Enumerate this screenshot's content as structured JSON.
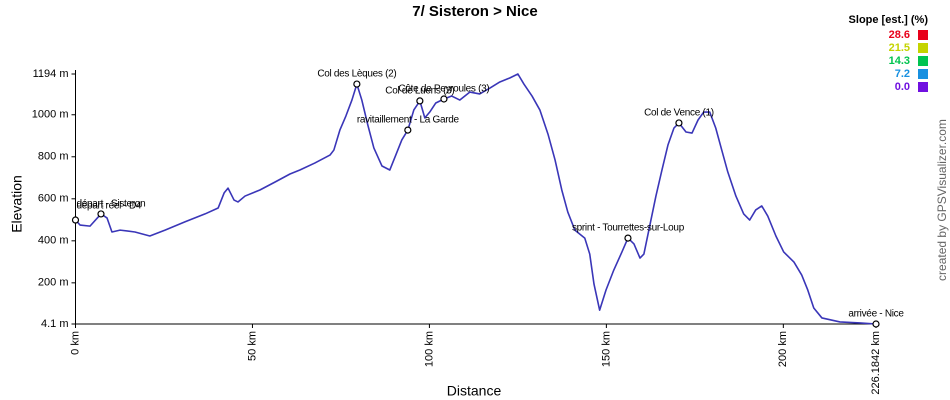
{
  "chart_data": {
    "type": "line",
    "title": "7/ Sisteron > Nice",
    "x_label": "Distance",
    "y_label": "Elevation",
    "color": "#3a36b8",
    "x": [
      0,
      1.3,
      4.1,
      7.2,
      8.9,
      10.3,
      12.6,
      16.8,
      21.0,
      25.3,
      30.9,
      36.6,
      40.3,
      42.0,
      43.1,
      44.8,
      45.9,
      47.9,
      52.1,
      56.4,
      60.6,
      63.4,
      67.6,
      71.9,
      73.0,
      74.7,
      76.4,
      78.1,
      79.5,
      80.9,
      82.6,
      84.3,
      86.6,
      88.8,
      90.5,
      92.2,
      93.9,
      95.6,
      97.3,
      98.7,
      100.1,
      101.8,
      104.1,
      106.3,
      108.6,
      111.4,
      114.2,
      117.1,
      119.9,
      122.7,
      125.0,
      126.7,
      129.0,
      131.2,
      133.5,
      135.5,
      137.4,
      139.1,
      141.1,
      143.9,
      145.3,
      146.5,
      148.1,
      149.9,
      152.1,
      154.4,
      156.1,
      157.8,
      159.5,
      160.6,
      162.3,
      164.0,
      165.7,
      167.4,
      169.1,
      170.5,
      172.5,
      174.2,
      175.9,
      177.5,
      179.2,
      180.9,
      182.6,
      184.3,
      186.6,
      188.8,
      190.5,
      192.2,
      193.9,
      195.6,
      197.9,
      200.1,
      203.0,
      205.2,
      206.9,
      208.6,
      210.9,
      216.0,
      221.6,
      226.1842
    ],
    "values": [
      499,
      475,
      470,
      528,
      509,
      442,
      451,
      442,
      423,
      451,
      490,
      528,
      556,
      628,
      651,
      594,
      585,
      613,
      642,
      680,
      718,
      737,
      770,
      808,
      832,
      927,
      994,
      1070,
      1146,
      1070,
      951,
      842,
      756,
      737,
      808,
      880,
      927,
      1023,
      1066,
      985,
      1013,
      1056,
      1075,
      1089,
      1070,
      1108,
      1099,
      1127,
      1156,
      1175,
      1194,
      1146,
      1089,
      1023,
      908,
      785,
      642,
      537,
      451,
      413,
      337,
      194,
      70,
      166,
      261,
      347,
      413,
      385,
      318,
      337,
      475,
      613,
      737,
      856,
      937,
      961,
      918,
      913,
      975,
      1013,
      1013,
      937,
      832,
      728,
      613,
      528,
      499,
      547,
      566,
      518,
      423,
      347,
      299,
      237,
      166,
      80,
      33,
      14,
      9,
      4.1
    ],
    "xlim": [
      0,
      226.1842
    ],
    "xticks": [
      {
        "value": 0,
        "label": "0 km"
      },
      {
        "value": 50,
        "label": "50 km"
      },
      {
        "value": 100,
        "label": "100 km"
      },
      {
        "value": 150,
        "label": "150 km"
      },
      {
        "value": 200,
        "label": "200 km"
      },
      {
        "value": 226.1842,
        "label": "226.1842 km"
      }
    ],
    "ylim": [
      4.1,
      1194
    ],
    "yticks": [
      {
        "value": 4.1,
        "label": "4.1 m"
      },
      {
        "value": 200,
        "label": "200 m"
      },
      {
        "value": 400,
        "label": "400 m"
      },
      {
        "value": 600,
        "label": "600 m"
      },
      {
        "value": 800,
        "label": "800 m"
      },
      {
        "value": 1000,
        "label": "1000 m"
      },
      {
        "value": 1194,
        "label": "1194 m"
      }
    ],
    "waypoints": [
      {
        "label": "départ réel - D4",
        "x": 0,
        "y": 499
      },
      {
        "label": "départ - Sisteron",
        "x": 7.2,
        "y": 528
      },
      {
        "label": "Col des Lèques (2)",
        "x": 79.5,
        "y": 1146
      },
      {
        "label": "ravitaillement - La Garde",
        "x": 93.9,
        "y": 927
      },
      {
        "label": "Col de Luens (3)",
        "x": 97.3,
        "y": 1066
      },
      {
        "label": "Côte de Peyroules (3)",
        "x": 104.1,
        "y": 1075
      },
      {
        "label": "sprint - Tourrettes-sur-Loup",
        "x": 156.1,
        "y": 413
      },
      {
        "label": "Col de Vence (1)",
        "x": 170.5,
        "y": 961
      },
      {
        "label": "arrivée - Nice",
        "x": 226.1842,
        "y": 4.1
      }
    ],
    "slope_legend": {
      "title": "Slope [est.] (%)",
      "levels": [
        {
          "value": 28.6,
          "color": "#e8001a"
        },
        {
          "value": 21.5,
          "color": "#c4d400"
        },
        {
          "value": 14.3,
          "color": "#00c450"
        },
        {
          "value": 7.2,
          "color": "#1890e0"
        },
        {
          "value": 0,
          "label": "0.0",
          "color": "#7010e0"
        }
      ]
    },
    "credit": "created by GPSVisualizer.com"
  }
}
